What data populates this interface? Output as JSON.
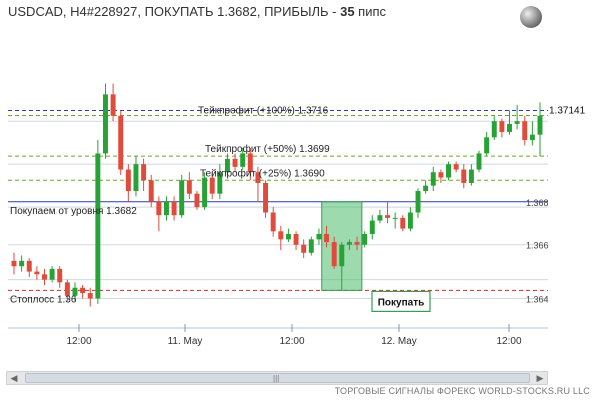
{
  "header": {
    "title_main": "USDCAD, H4#228927, ПОКУПАТЬ 1.3682, ПРИБЫЛЬ - ",
    "title_pips": "35",
    "title_unit": " пипс"
  },
  "footer": {
    "text": "ТОРГОВЫЕ СИГНАЛЫ ФОРЕКС WORLD-STOCKS.RU LLC"
  },
  "scrollbar": {
    "left_arrow": "◀",
    "right_arrow": "▶",
    "grip": "|||"
  },
  "colors": {
    "up": "#27a335",
    "down": "#e04b3c",
    "tp": "#6aa823",
    "tp100": "#2a3da8",
    "stop": "#d42a2a",
    "entry": "#2a3da8"
  },
  "chart_data": {
    "type": "candlestick",
    "symbol": "USDCAD",
    "timeframe": "H4",
    "ylim": [
      1.3635,
      1.374
    ],
    "yticks": [
      "1.368",
      "1.366",
      "1.364"
    ],
    "xticks": [
      "12:00",
      "11. May",
      "12:00",
      "12. May",
      "12:00"
    ],
    "current_price": "1.37141",
    "levels": {
      "take_profit_100": {
        "label": "Тейкпрофит (+100%) 1.3716",
        "value": 1.3716
      },
      "take_profit_50": {
        "label": "Тейкпрофит (+50%) 1.3699",
        "value": 1.3699
      },
      "take_profit_25": {
        "label": "Тейкпрофит (+25%) 1.3690",
        "value": 1.369
      },
      "entry": {
        "label": "Покупаем от уровня 1.3682",
        "value": 1.3682
      },
      "stop_loss": {
        "label": "Стоплосс 1.36",
        "value": 1.3649
      }
    },
    "signal_label": "Покупать",
    "candles": [
      [
        1.366,
        1.3658,
        1.3663,
        1.3655
      ],
      [
        1.3658,
        1.366,
        1.3662,
        1.3656
      ],
      [
        1.366,
        1.3656,
        1.3661,
        1.3654
      ],
      [
        1.3656,
        1.3655,
        1.3658,
        1.3653
      ],
      [
        1.3655,
        1.3653,
        1.3657,
        1.3651
      ],
      [
        1.3653,
        1.3657,
        1.3658,
        1.3652
      ],
      [
        1.3657,
        1.3652,
        1.3658,
        1.365
      ],
      [
        1.3652,
        1.3647,
        1.3653,
        1.3645
      ],
      [
        1.3647,
        1.365,
        1.3652,
        1.3645
      ],
      [
        1.365,
        1.3648,
        1.3651,
        1.3646
      ],
      [
        1.3648,
        1.3646,
        1.365,
        1.3643
      ],
      [
        1.3646,
        1.37,
        1.3705,
        1.3644
      ],
      [
        1.37,
        1.3722,
        1.3726,
        1.3698
      ],
      [
        1.3722,
        1.3714,
        1.3726,
        1.3712
      ],
      [
        1.3714,
        1.3694,
        1.3716,
        1.3692
      ],
      [
        1.3694,
        1.3686,
        1.3696,
        1.3682
      ],
      [
        1.3686,
        1.3696,
        1.3699,
        1.3684
      ],
      [
        1.3696,
        1.369,
        1.3698,
        1.3686
      ],
      [
        1.369,
        1.3682,
        1.3692,
        1.368
      ],
      [
        1.3682,
        1.3677,
        1.3684,
        1.3671
      ],
      [
        1.3677,
        1.3682,
        1.3684,
        1.3675
      ],
      [
        1.3682,
        1.3677,
        1.3684,
        1.3675
      ],
      [
        1.3677,
        1.369,
        1.3692,
        1.3676
      ],
      [
        1.369,
        1.3685,
        1.3693,
        1.3683
      ],
      [
        1.3685,
        1.368,
        1.3686,
        1.3679
      ],
      [
        1.368,
        1.3691,
        1.3693,
        1.3679
      ],
      [
        1.3691,
        1.3685,
        1.3693,
        1.3683
      ],
      [
        1.3685,
        1.3693,
        1.3696,
        1.3683
      ],
      [
        1.3693,
        1.3698,
        1.37,
        1.3692
      ],
      [
        1.3698,
        1.3695,
        1.37,
        1.3693
      ],
      [
        1.3695,
        1.37,
        1.3702,
        1.3694
      ],
      [
        1.37,
        1.3693,
        1.3702,
        1.369
      ],
      [
        1.3693,
        1.3689,
        1.3695,
        1.3682
      ],
      [
        1.3689,
        1.3678,
        1.369,
        1.3676
      ],
      [
        1.3678,
        1.3671,
        1.368,
        1.3669
      ],
      [
        1.3671,
        1.3668,
        1.3673,
        1.3664
      ],
      [
        1.3668,
        1.367,
        1.3672,
        1.3667
      ],
      [
        1.367,
        1.3666,
        1.3671,
        1.3664
      ],
      [
        1.3666,
        1.3663,
        1.3668,
        1.3661
      ],
      [
        1.3663,
        1.3668,
        1.3669,
        1.3662
      ],
      [
        1.3668,
        1.367,
        1.3672,
        1.3666
      ],
      [
        1.367,
        1.3667,
        1.3673,
        1.3665
      ],
      [
        1.3667,
        1.3658,
        1.3669,
        1.3657
      ],
      [
        1.3658,
        1.3666,
        1.3667,
        1.3649
      ],
      [
        1.3666,
        1.3667,
        1.3668,
        1.3664
      ],
      [
        1.3667,
        1.3666,
        1.3669,
        1.3664
      ],
      [
        1.3666,
        1.367,
        1.3671,
        1.3665
      ],
      [
        1.367,
        1.3675,
        1.3677,
        1.3668
      ],
      [
        1.3675,
        1.3677,
        1.3679,
        1.3674
      ],
      [
        1.3677,
        1.3676,
        1.3682,
        1.3674
      ],
      [
        1.3676,
        1.3676,
        1.3678,
        1.3672
      ],
      [
        1.3676,
        1.3672,
        1.3677,
        1.3671
      ],
      [
        1.3672,
        1.3678,
        1.368,
        1.3671
      ],
      [
        1.3678,
        1.3686,
        1.3687,
        1.3676
      ],
      [
        1.3686,
        1.3688,
        1.369,
        1.3685
      ],
      [
        1.3688,
        1.3693,
        1.3695,
        1.3686
      ],
      [
        1.3693,
        1.3691,
        1.3694,
        1.3689
      ],
      [
        1.3691,
        1.3696,
        1.3697,
        1.369
      ],
      [
        1.3696,
        1.3694,
        1.3697,
        1.3693
      ],
      [
        1.3694,
        1.3689,
        1.3696,
        1.3687
      ],
      [
        1.3689,
        1.3694,
        1.3696,
        1.3688
      ],
      [
        1.3694,
        1.37,
        1.3701,
        1.3693
      ],
      [
        1.37,
        1.3706,
        1.3708,
        1.3699
      ],
      [
        1.3706,
        1.3712,
        1.3714,
        1.3705
      ],
      [
        1.3712,
        1.3708,
        1.3713,
        1.3706
      ],
      [
        1.3708,
        1.3711,
        1.3716,
        1.3707
      ],
      [
        1.3711,
        1.3712,
        1.3718,
        1.3709
      ],
      [
        1.3712,
        1.3705,
        1.3714,
        1.3703
      ],
      [
        1.3705,
        1.3707,
        1.3712,
        1.3703
      ],
      [
        1.3707,
        1.3714,
        1.3719,
        1.3699
      ]
    ]
  }
}
